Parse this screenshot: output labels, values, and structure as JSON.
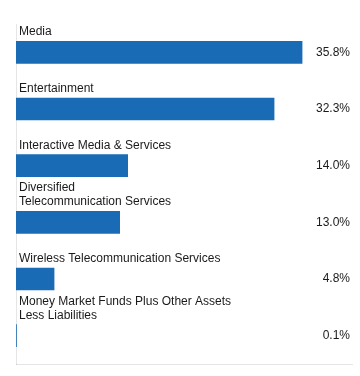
{
  "chart_data": {
    "type": "bar",
    "orientation": "horizontal",
    "categories": [
      "Media",
      "Entertainment",
      "Interactive Media & Services",
      "Diversified\nTelecommunication Services",
      "Wireless Telecommunication Services",
      "Money Market Funds Plus Other Assets\nLess Liabilities"
    ],
    "values": [
      35.8,
      32.3,
      14.0,
      13.0,
      4.8,
      0.1
    ],
    "value_labels": [
      "35.8%",
      "32.3%",
      "14.0%",
      "13.0%",
      "4.8%",
      "0.1%"
    ],
    "color": "#1A6BB5",
    "xlim": [
      0,
      42
    ],
    "data_labels": true,
    "tick_labels": false,
    "grid": false
  }
}
